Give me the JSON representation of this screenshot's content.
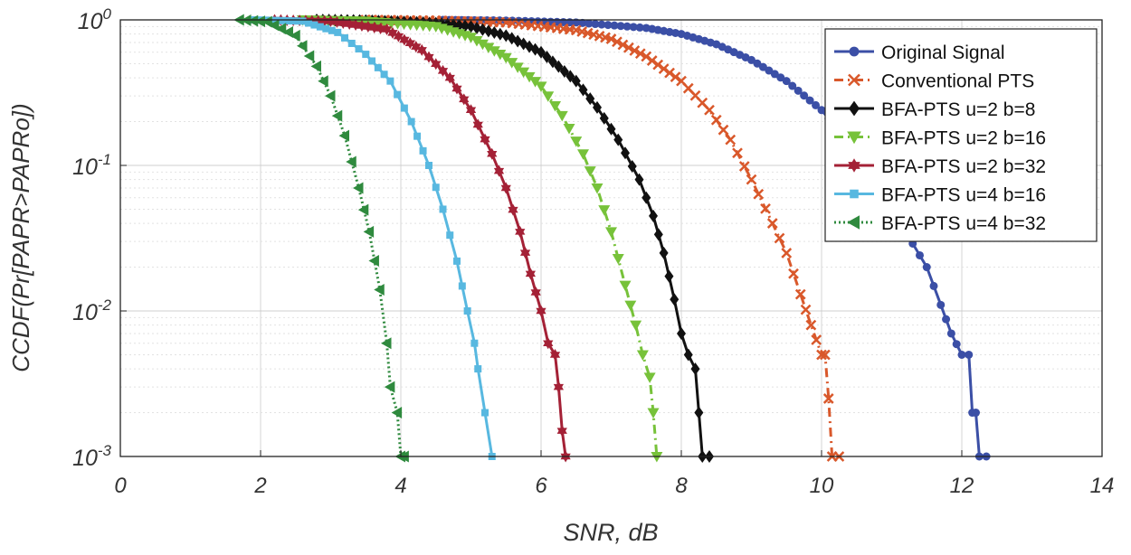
{
  "chart_data": {
    "type": "line",
    "title": "",
    "xlabel": "SNR, dB",
    "ylabel": "CCDF(Pr[PAPR>PAPRo])",
    "xlim": [
      0,
      14
    ],
    "ylim": [
      0.001,
      1
    ],
    "yscale": "log",
    "grid": true,
    "legend_position": "top-right",
    "x_ticks": [
      0,
      2,
      4,
      6,
      8,
      10,
      12,
      14
    ],
    "x_tick_labels": [
      "0",
      "2",
      "4",
      "6",
      "8",
      "10",
      "12",
      "14"
    ],
    "y_ticks": [
      1,
      0.1,
      0.01,
      0.001
    ],
    "y_tick_bases": [
      "10",
      "10",
      "10",
      "10"
    ],
    "y_tick_exps": [
      "0",
      "-1",
      "-2",
      "-3"
    ],
    "series": [
      {
        "name": "Original Signal",
        "color": "#3b4fa6",
        "marker": "circle",
        "dash": "solid",
        "points": [
          [
            4.6,
            1.0
          ],
          [
            5.5,
            0.99
          ],
          [
            6.5,
            0.96
          ],
          [
            7.5,
            0.88
          ],
          [
            8.0,
            0.8
          ],
          [
            8.5,
            0.68
          ],
          [
            9.0,
            0.53
          ],
          [
            9.5,
            0.38
          ],
          [
            10.0,
            0.24
          ],
          [
            10.3,
            0.16
          ],
          [
            10.6,
            0.1
          ],
          [
            10.9,
            0.06
          ],
          [
            11.2,
            0.035
          ],
          [
            11.5,
            0.02
          ],
          [
            11.7,
            0.011
          ],
          [
            11.85,
            0.007
          ],
          [
            12.0,
            0.005
          ],
          [
            12.1,
            0.005
          ],
          [
            12.15,
            0.002
          ],
          [
            12.2,
            0.002
          ],
          [
            12.25,
            0.001
          ],
          [
            12.35,
            0.001
          ]
        ]
      },
      {
        "name": "Conventional PTS",
        "color": "#d9582b",
        "marker": "x",
        "dash": "dashdot",
        "points": [
          [
            3.5,
            1.0
          ],
          [
            4.5,
            0.99
          ],
          [
            5.5,
            0.96
          ],
          [
            6.5,
            0.85
          ],
          [
            7.0,
            0.74
          ],
          [
            7.5,
            0.56
          ],
          [
            8.0,
            0.38
          ],
          [
            8.4,
            0.24
          ],
          [
            8.7,
            0.15
          ],
          [
            9.0,
            0.08
          ],
          [
            9.3,
            0.04
          ],
          [
            9.5,
            0.025
          ],
          [
            9.7,
            0.013
          ],
          [
            9.85,
            0.008
          ],
          [
            10.0,
            0.005
          ],
          [
            10.05,
            0.005
          ],
          [
            10.1,
            0.0025
          ],
          [
            10.15,
            0.001
          ],
          [
            10.25,
            0.001
          ]
        ]
      },
      {
        "name": "BFA-PTS u=2 b=8",
        "color": "#111111",
        "marker": "diamond",
        "dash": "solid",
        "points": [
          [
            2.8,
            1.0
          ],
          [
            3.5,
            0.99
          ],
          [
            4.5,
            0.95
          ],
          [
            5.0,
            0.9
          ],
          [
            5.5,
            0.78
          ],
          [
            6.0,
            0.6
          ],
          [
            6.5,
            0.38
          ],
          [
            6.8,
            0.25
          ],
          [
            7.1,
            0.15
          ],
          [
            7.4,
            0.08
          ],
          [
            7.6,
            0.045
          ],
          [
            7.75,
            0.025
          ],
          [
            7.9,
            0.012
          ],
          [
            8.0,
            0.007
          ],
          [
            8.1,
            0.005
          ],
          [
            8.2,
            0.004
          ],
          [
            8.25,
            0.002
          ],
          [
            8.3,
            0.001
          ],
          [
            8.4,
            0.001
          ]
        ]
      },
      {
        "name": "BFA-PTS u=2 b=16",
        "color": "#77c23a",
        "marker": "triangle-down",
        "dash": "dashdot",
        "points": [
          [
            2.6,
            1.0
          ],
          [
            3.5,
            0.98
          ],
          [
            4.5,
            0.9
          ],
          [
            5.0,
            0.76
          ],
          [
            5.5,
            0.55
          ],
          [
            6.0,
            0.35
          ],
          [
            6.3,
            0.22
          ],
          [
            6.6,
            0.12
          ],
          [
            6.8,
            0.07
          ],
          [
            7.0,
            0.035
          ],
          [
            7.2,
            0.015
          ],
          [
            7.35,
            0.008
          ],
          [
            7.45,
            0.005
          ],
          [
            7.55,
            0.0035
          ],
          [
            7.6,
            0.002
          ],
          [
            7.65,
            0.001
          ]
        ]
      },
      {
        "name": "BFA-PTS u=2 b=32",
        "color": "#a42136",
        "marker": "hexagram",
        "dash": "solid",
        "points": [
          [
            2.2,
            1.0
          ],
          [
            3.0,
            0.98
          ],
          [
            3.8,
            0.86
          ],
          [
            4.3,
            0.62
          ],
          [
            4.7,
            0.4
          ],
          [
            5.0,
            0.24
          ],
          [
            5.3,
            0.12
          ],
          [
            5.5,
            0.07
          ],
          [
            5.7,
            0.035
          ],
          [
            5.85,
            0.018
          ],
          [
            6.0,
            0.01
          ],
          [
            6.1,
            0.006
          ],
          [
            6.2,
            0.005
          ],
          [
            6.25,
            0.003
          ],
          [
            6.3,
            0.0015
          ],
          [
            6.35,
            0.001
          ]
        ]
      },
      {
        "name": "BFA-PTS u=4 b=16",
        "color": "#58b8e0",
        "marker": "square",
        "dash": "solid",
        "points": [
          [
            1.9,
            1.0
          ],
          [
            2.6,
            0.98
          ],
          [
            3.1,
            0.82
          ],
          [
            3.5,
            0.58
          ],
          [
            3.85,
            0.38
          ],
          [
            4.15,
            0.2
          ],
          [
            4.4,
            0.1
          ],
          [
            4.6,
            0.05
          ],
          [
            4.8,
            0.022
          ],
          [
            4.95,
            0.01
          ],
          [
            5.05,
            0.006
          ],
          [
            5.1,
            0.004
          ],
          [
            5.2,
            0.002
          ],
          [
            5.3,
            0.001
          ]
        ]
      },
      {
        "name": "BFA-PTS u=4 b=32",
        "color": "#2f8a3e",
        "marker": "triangle-left",
        "dash": "dotted",
        "points": [
          [
            1.7,
            1.0
          ],
          [
            2.1,
            0.97
          ],
          [
            2.5,
            0.78
          ],
          [
            2.8,
            0.48
          ],
          [
            3.0,
            0.3
          ],
          [
            3.2,
            0.16
          ],
          [
            3.4,
            0.07
          ],
          [
            3.55,
            0.035
          ],
          [
            3.7,
            0.014
          ],
          [
            3.8,
            0.006
          ],
          [
            3.85,
            0.003
          ],
          [
            3.95,
            0.002
          ],
          [
            4.0,
            0.001
          ],
          [
            4.05,
            0.001
          ]
        ]
      }
    ]
  }
}
